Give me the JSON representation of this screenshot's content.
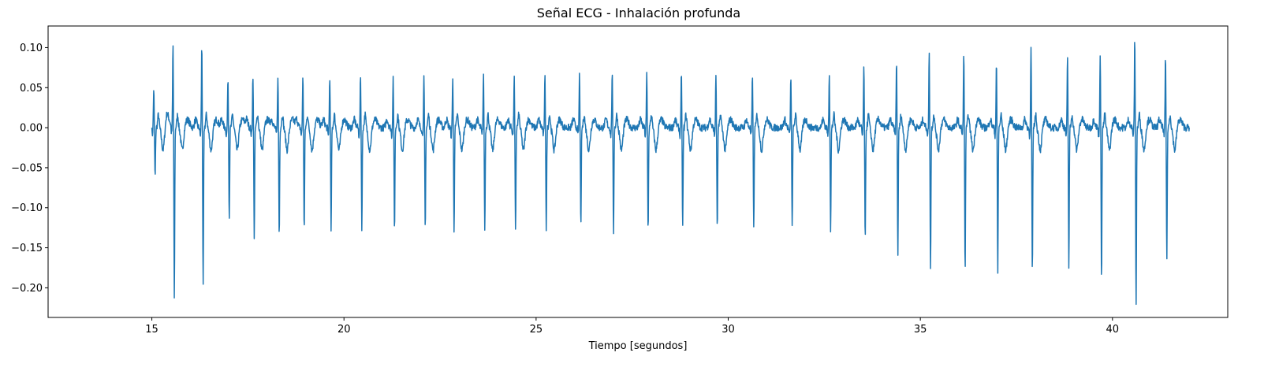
{
  "chart_data": {
    "type": "line",
    "title": "Señal ECG - Inhalación profunda",
    "xlabel": "Tiempo [segundos]",
    "ylabel": "",
    "xlim": [
      12.3,
      43.0
    ],
    "ylim": [
      -0.237,
      0.127
    ],
    "xticks": [
      15,
      20,
      25,
      30,
      35,
      40
    ],
    "xtick_labels": [
      "15",
      "20",
      "25",
      "30",
      "35",
      "40"
    ],
    "yticks": [
      0.1,
      0.05,
      0.0,
      -0.05,
      -0.1,
      -0.15,
      -0.2
    ],
    "ytick_labels": [
      "0.10",
      "0.05",
      "0.00",
      "−0.05",
      "−0.10",
      "−0.15",
      "−0.20"
    ],
    "grid": false,
    "series": [
      {
        "name": "",
        "color": "#1f77b4",
        "x_start": 15.0,
        "x_end": 42.0,
        "beats": [
          {
            "t": 15.05,
            "r": 0.049,
            "s": -0.062
          },
          {
            "t": 15.55,
            "r": 0.105,
            "s": -0.213
          },
          {
            "t": 16.3,
            "r": 0.104,
            "s": -0.201
          },
          {
            "t": 16.98,
            "r": 0.064,
            "s": -0.113
          },
          {
            "t": 17.63,
            "r": 0.067,
            "s": -0.136
          },
          {
            "t": 18.28,
            "r": 0.066,
            "s": -0.136
          },
          {
            "t": 18.93,
            "r": 0.066,
            "s": -0.128
          },
          {
            "t": 19.63,
            "r": 0.065,
            "s": -0.128
          },
          {
            "t": 20.43,
            "r": 0.064,
            "s": -0.125
          },
          {
            "t": 21.28,
            "r": 0.063,
            "s": -0.129
          },
          {
            "t": 22.08,
            "r": 0.061,
            "s": -0.129
          },
          {
            "t": 22.83,
            "r": 0.063,
            "s": -0.129
          },
          {
            "t": 23.63,
            "r": 0.065,
            "s": -0.129
          },
          {
            "t": 24.43,
            "r": 0.063,
            "s": -0.131
          },
          {
            "t": 25.23,
            "r": 0.064,
            "s": -0.128
          },
          {
            "t": 26.13,
            "r": 0.067,
            "s": -0.126
          },
          {
            "t": 26.98,
            "r": 0.069,
            "s": -0.13
          },
          {
            "t": 27.88,
            "r": 0.068,
            "s": -0.129
          },
          {
            "t": 28.78,
            "r": 0.067,
            "s": -0.124
          },
          {
            "t": 29.68,
            "r": 0.066,
            "s": -0.129
          },
          {
            "t": 30.63,
            "r": 0.066,
            "s": -0.128
          },
          {
            "t": 31.63,
            "r": 0.065,
            "s": -0.127
          },
          {
            "t": 32.63,
            "r": 0.068,
            "s": -0.128
          },
          {
            "t": 33.53,
            "r": 0.076,
            "s": -0.144
          },
          {
            "t": 34.38,
            "r": 0.083,
            "s": -0.157
          },
          {
            "t": 35.23,
            "r": 0.093,
            "s": -0.179
          },
          {
            "t": 36.13,
            "r": 0.096,
            "s": -0.178
          },
          {
            "t": 36.98,
            "r": 0.084,
            "s": -0.182
          },
          {
            "t": 37.88,
            "r": 0.101,
            "s": -0.184
          },
          {
            "t": 38.83,
            "r": 0.087,
            "s": -0.174
          },
          {
            "t": 39.68,
            "r": 0.094,
            "s": -0.188
          },
          {
            "t": 40.58,
            "r": 0.113,
            "s": -0.22
          },
          {
            "t": 41.38,
            "r": 0.088,
            "s": -0.163
          }
        ]
      }
    ]
  }
}
